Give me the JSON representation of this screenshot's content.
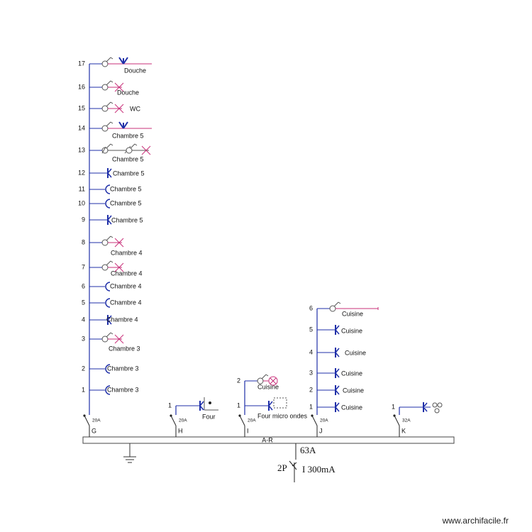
{
  "circuits": [
    {
      "name": "G",
      "breaker": "20A",
      "rows": [
        {
          "number": 17,
          "label": "Douche"
        },
        {
          "number": 16,
          "label": "Douche"
        },
        {
          "number": 15,
          "label": "WC"
        },
        {
          "number": 14,
          "label": "Chambre 5"
        },
        {
          "number": 13,
          "label": "Chambre 5"
        },
        {
          "number": 12,
          "label": "Chambre 5"
        },
        {
          "number": 11,
          "label": "Chambre 5"
        },
        {
          "number": 10,
          "label": "Chambre 5"
        },
        {
          "number": 9,
          "label": "Chambre 5"
        },
        {
          "number": 8,
          "label": "Chambre 4"
        },
        {
          "number": 7,
          "label": "Chambre 4"
        },
        {
          "number": 6,
          "label": "Chambre 4"
        },
        {
          "number": 5,
          "label": "Chambre 4"
        },
        {
          "number": 4,
          "label": "Chambre 4"
        },
        {
          "number": 3,
          "label": "Chambre 3"
        },
        {
          "number": 2,
          "label": "Chambre 3"
        },
        {
          "number": 1,
          "label": "Chambre 3"
        }
      ]
    },
    {
      "name": "H",
      "breaker": "20A",
      "rows": [
        {
          "number": 1,
          "label": "Four"
        }
      ]
    },
    {
      "name": "I",
      "breaker": "20A",
      "rows": [
        {
          "number": 2,
          "label": "Cuisine"
        },
        {
          "number": 1,
          "label": "Four micro ondes"
        }
      ]
    },
    {
      "name": "J",
      "breaker": "20A",
      "rows": [
        {
          "number": 6,
          "label": "Cuisine"
        },
        {
          "number": 5,
          "label": "Cuisine"
        },
        {
          "number": 4,
          "label": "Cuisine"
        },
        {
          "number": 3,
          "label": "Cuisine"
        },
        {
          "number": 2,
          "label": "Cuisine"
        },
        {
          "number": 1,
          "label": "Cuisine"
        }
      ]
    },
    {
      "name": "K",
      "breaker": "32A",
      "rows": [
        {
          "number": 1
        }
      ]
    }
  ],
  "bus_label": "A-R",
  "main": {
    "rating": "63A",
    "poles": "2P",
    "sensitivity": "I 300mA"
  },
  "watermark": "www.archifacile.fr"
}
